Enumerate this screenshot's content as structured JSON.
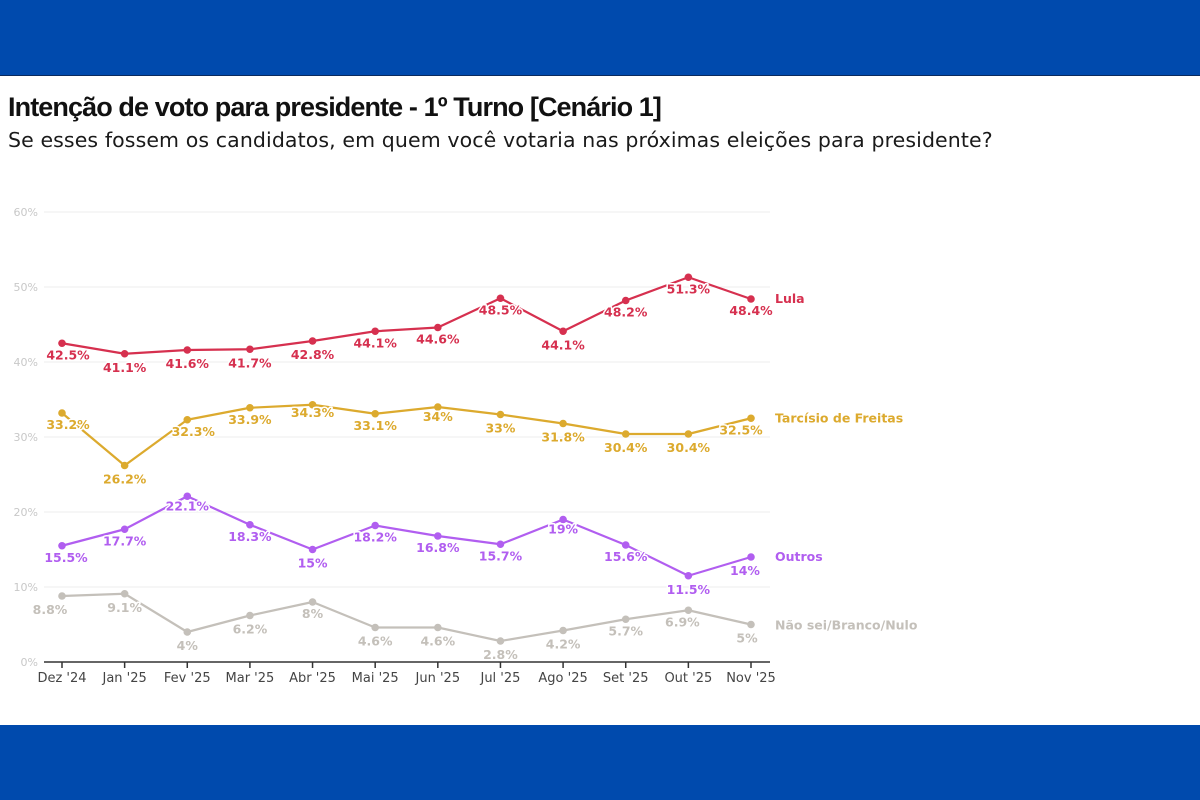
{
  "header": {
    "title": "Intenção de voto para presidente - 1º Turno [Cenário 1]",
    "subtitle": "Se esses fossem os candidatos, em quem você votaria nas próximas eleições para presidente?"
  },
  "colors": {
    "band": "#004aad",
    "gridline": "#ececec",
    "axis": "#333333"
  },
  "chart_data": {
    "type": "line",
    "title": "Intenção de voto para presidente - 1º Turno [Cenário 1]",
    "subtitle": "Se esses fossem os candidatos, em quem você votaria nas próximas eleições para presidente?",
    "xlabel": "",
    "ylabel": "",
    "categories": [
      "Dez '24",
      "Jan '25",
      "Fev '25",
      "Mar '25",
      "Abr '25",
      "Mai '25",
      "Jun '25",
      "Jul '25",
      "Ago '25",
      "Set '25",
      "Out '25",
      "Nov '25"
    ],
    "ylim": [
      0,
      60
    ],
    "yticks": [
      0,
      10,
      20,
      30,
      40,
      50,
      60
    ],
    "ytick_labels": [
      "0%",
      "10%",
      "20%",
      "30%",
      "40%",
      "50%",
      "60%"
    ],
    "grid": true,
    "legend": "right (direct labels at line ends)",
    "series": [
      {
        "name": "Lula",
        "color": "#d6304f",
        "values": [
          42.5,
          41.1,
          41.6,
          41.7,
          42.8,
          44.1,
          44.6,
          48.5,
          44.1,
          48.2,
          51.3,
          48.4
        ],
        "labels": [
          "42.5%",
          "41.1%",
          "41.6%",
          "41.7%",
          "42.8%",
          "44.1%",
          "44.6%",
          "48.5%",
          "44.1%",
          "48.2%",
          "51.3%",
          "48.4%"
        ]
      },
      {
        "name": "Tarcísio de Freitas",
        "color": "#dcaa2e",
        "values": [
          33.2,
          26.2,
          32.3,
          33.9,
          34.3,
          33.1,
          34,
          33,
          31.8,
          30.4,
          30.4,
          32.5
        ],
        "labels": [
          "33.2%",
          "26.2%",
          "32.3%",
          "33.9%",
          "34.3%",
          "33.1%",
          "34%",
          "33%",
          "31.8%",
          "30.4%",
          "30.4%",
          "32.5%"
        ]
      },
      {
        "name": "Outros",
        "color": "#b15ef0",
        "values": [
          15.5,
          17.7,
          22.1,
          18.3,
          15,
          18.2,
          16.8,
          15.7,
          19,
          15.6,
          11.5,
          14
        ],
        "labels": [
          "15.5%",
          "17.7%",
          "22.1%",
          "18.3%",
          "15%",
          "18.2%",
          "16.8%",
          "15.7%",
          "19%",
          "15.6%",
          "11.5%",
          "14%"
        ]
      },
      {
        "name": "Não sei/Branco/Nulo",
        "color": "#c4c0ba",
        "values": [
          8.8,
          9.1,
          4,
          6.2,
          8,
          4.6,
          4.6,
          2.8,
          4.2,
          5.7,
          6.9,
          5
        ],
        "labels": [
          "8.8%",
          "9.1%",
          "4%",
          "6.2%",
          "8%",
          "4.6%",
          "4.6%",
          "2.8%",
          "4.2%",
          "5.7%",
          "6.9%",
          "5%"
        ]
      }
    ]
  }
}
